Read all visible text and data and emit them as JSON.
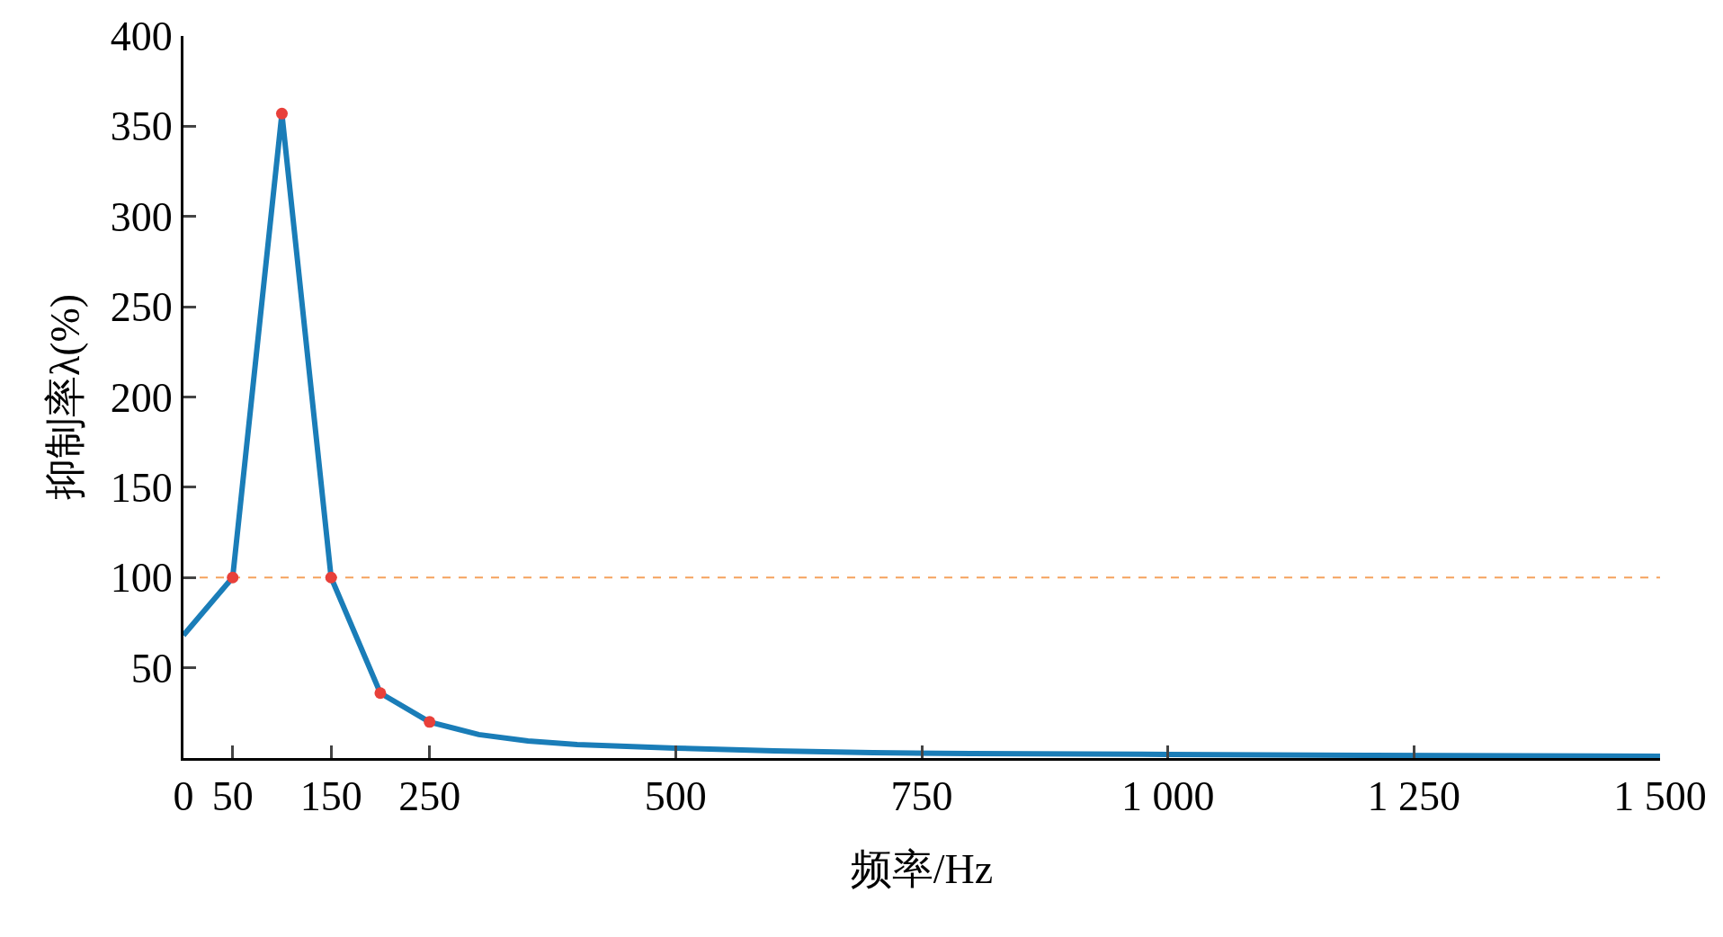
{
  "chart_data": {
    "type": "line",
    "xlabel": "频率/Hz",
    "ylabel": "抑制率λ(%)",
    "series": [
      {
        "color": "#1a7db8",
        "x": [
          0,
          50,
          100,
          150,
          200,
          250,
          300,
          350,
          400,
          450,
          500,
          600,
          700,
          800,
          1000,
          1200,
          1500
        ],
        "values": [
          68,
          100,
          357,
          100,
          36,
          20,
          13,
          9.5,
          7.5,
          6.5,
          5.5,
          4,
          3,
          2.5,
          2,
          1.5,
          1
        ]
      },
      {
        "type": "scatter",
        "color": "#e8403a",
        "marker": "circle",
        "x": [
          50,
          100,
          150,
          200,
          250
        ],
        "values": [
          100,
          357,
          100,
          36,
          20
        ]
      }
    ],
    "xlim": [
      0,
      1500
    ],
    "ylim": [
      0,
      400
    ],
    "xticks": [
      0,
      50,
      150,
      250,
      500,
      750,
      {
        "value": 1000,
        "label": "1 000"
      },
      {
        "value": 1250,
        "label": "1 250"
      },
      {
        "value": 1500,
        "label": "1 500"
      }
    ],
    "yticks": [
      50,
      100,
      150,
      200,
      250,
      300,
      350,
      400
    ],
    "ref_lines": [
      {
        "axis": "y",
        "value": 100,
        "color": "#f5a25d",
        "line_style": "dashed"
      }
    ],
    "grid": false
  }
}
